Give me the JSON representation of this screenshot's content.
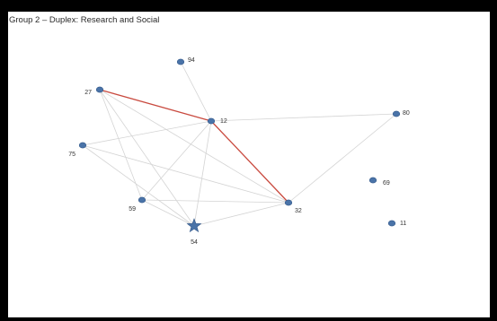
{
  "title": "Group 2 – Duplex: Research and Social",
  "colors": {
    "background": "#000000",
    "panel": "#ffffff",
    "node_fill": "#4a73a8",
    "node_stroke": "#34598a",
    "edge_default": "#d4d4d4",
    "edge_highlight": "#c94a3f"
  },
  "nodes": [
    {
      "id": "94",
      "label": "94",
      "shape": "circle"
    },
    {
      "id": "27",
      "label": "27",
      "shape": "circle"
    },
    {
      "id": "12",
      "label": "12",
      "shape": "circle"
    },
    {
      "id": "80",
      "label": "80",
      "shape": "circle"
    },
    {
      "id": "75",
      "label": "75",
      "shape": "circle"
    },
    {
      "id": "69",
      "label": "69",
      "shape": "circle"
    },
    {
      "id": "59",
      "label": "59",
      "shape": "circle"
    },
    {
      "id": "32",
      "label": "32",
      "shape": "circle"
    },
    {
      "id": "11",
      "label": "11",
      "shape": "circle"
    },
    {
      "id": "54",
      "label": "54",
      "shape": "star"
    }
  ],
  "edges": [
    {
      "source": "94",
      "target": "12",
      "highlight": false
    },
    {
      "source": "27",
      "target": "59",
      "highlight": false
    },
    {
      "source": "27",
      "target": "32",
      "highlight": false
    },
    {
      "source": "27",
      "target": "54",
      "highlight": false
    },
    {
      "source": "12",
      "target": "80",
      "highlight": false
    },
    {
      "source": "12",
      "target": "75",
      "highlight": false
    },
    {
      "source": "12",
      "target": "59",
      "highlight": false
    },
    {
      "source": "12",
      "target": "54",
      "highlight": false
    },
    {
      "source": "75",
      "target": "32",
      "highlight": false
    },
    {
      "source": "75",
      "target": "54",
      "highlight": false
    },
    {
      "source": "59",
      "target": "32",
      "highlight": false
    },
    {
      "source": "59",
      "target": "54",
      "highlight": false
    },
    {
      "source": "54",
      "target": "32",
      "highlight": false
    },
    {
      "source": "80",
      "target": "32",
      "highlight": false
    },
    {
      "source": "27",
      "target": "12",
      "highlight": true
    },
    {
      "source": "12",
      "target": "32",
      "highlight": true
    }
  ]
}
